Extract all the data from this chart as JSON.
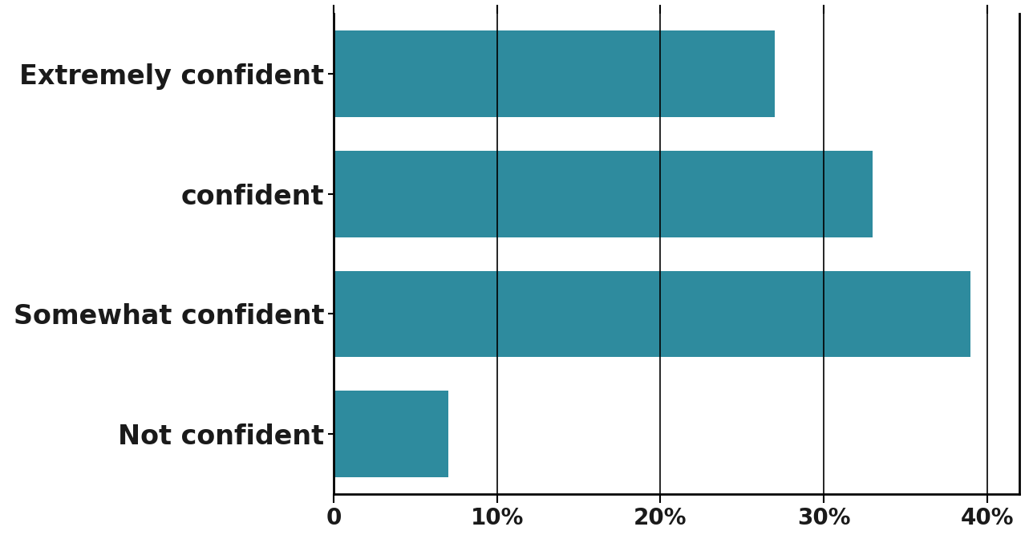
{
  "categories": [
    "Not confident",
    "Somewhat confident",
    "confident",
    "Extremely confident"
  ],
  "values": [
    7,
    39,
    33,
    27
  ],
  "bar_color": "#2e8b9e",
  "xlim": [
    0,
    42
  ],
  "xticks": [
    0,
    10,
    20,
    30,
    40
  ],
  "xticklabels": [
    "0",
    "10%",
    "20%",
    "30%",
    "40%"
  ],
  "background_color": "#ffffff",
  "bar_height": 0.72,
  "tick_fontsize": 20,
  "label_fontsize": 24,
  "label_color": "#1a1a1a"
}
